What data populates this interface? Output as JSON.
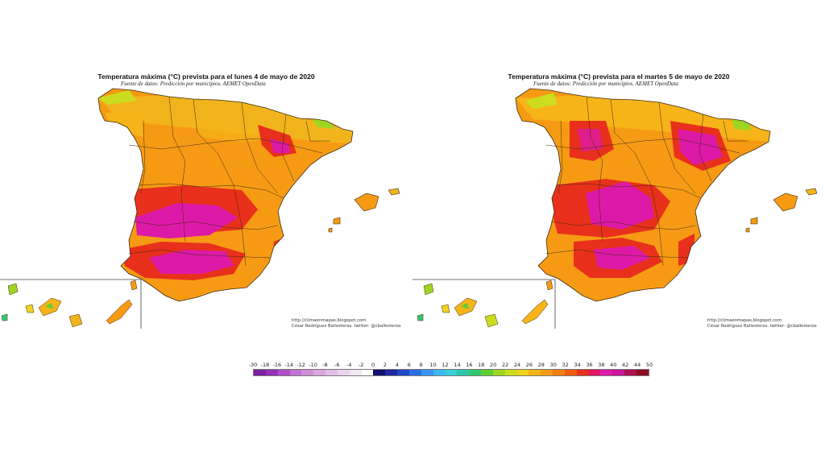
{
  "maps": [
    {
      "id": "monday",
      "title": "Temperatura máxima (°C) prevista para el lunes 4 de mayo de 2020",
      "source": "Fuente de datos: Predicción por municipios. AEMET OpenData",
      "credit_url": "http://climaenmapas.blogspot.com",
      "credit_author": "César Rodríguez Ballesteros. twitter: @cballesteros"
    },
    {
      "id": "tuesday",
      "title": "Temperatura máxima (°C) prevista para el martes 5 de mayo de 2020",
      "source": "Fuente de datos: Predicción por municipios. AEMET OpenData",
      "credit_url": "http://climaenmapas.blogspot.com",
      "credit_author": "César Rodríguez Ballesteros. twitter: @cballesteros"
    }
  ],
  "legend": {
    "labels": [
      "-30",
      "-18",
      "-16",
      "-14",
      "-12",
      "-10",
      "-8",
      "-6",
      "-4",
      "-2",
      "0",
      "2",
      "4",
      "6",
      "8",
      "10",
      "12",
      "14",
      "16",
      "18",
      "20",
      "22",
      "24",
      "26",
      "28",
      "30",
      "32",
      "34",
      "36",
      "38",
      "40",
      "42",
      "44",
      "50"
    ],
    "colors": [
      "#7a1fa2",
      "#9a2fb8",
      "#b04fc8",
      "#c470d4",
      "#cf8fd8",
      "#d9a7de",
      "#e2bde6",
      "#ebd2ee",
      "#f3e6f5",
      "#ffffff",
      "#10106e",
      "#1c2a9c",
      "#1f48c8",
      "#2b6de0",
      "#3a93ee",
      "#3eb8f0",
      "#35cfd8",
      "#2cc8a8",
      "#33c76f",
      "#5fcd32",
      "#9cd622",
      "#ccdd1f",
      "#f2d21c",
      "#f7b418",
      "#f69a14",
      "#f27f12",
      "#ee5c10",
      "#e8301c",
      "#e21565",
      "#dd1aa8",
      "#cc159a",
      "#b01050",
      "#8e0c22"
    ],
    "color_roles": {
      "hot": "#e8301c",
      "very_hot": "#dd1aa8",
      "warm": "#f69a14",
      "mild": "#f2d21c",
      "cool": "#5fcd32"
    }
  }
}
